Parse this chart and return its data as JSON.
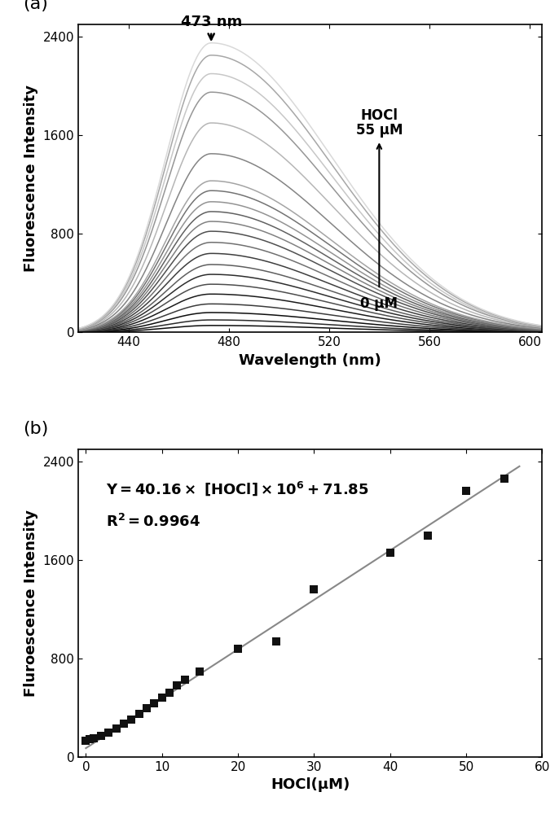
{
  "panel_a": {
    "xlabel": "Wavelength (nm)",
    "ylabel": "Fluorescence Intensity",
    "xlim": [
      420,
      605
    ],
    "ylim": [
      0,
      2500
    ],
    "xticks": [
      440,
      480,
      520,
      560,
      600
    ],
    "yticks": [
      0,
      800,
      1600,
      2400
    ],
    "peak_nm": 473,
    "annotation_peak": "473 nm",
    "annotation_hocl_top": "HOCl",
    "annotation_hocl_55": "55 μM",
    "annotation_hocl_0": "0 μM",
    "peak_intensities": [
      55,
      100,
      160,
      230,
      310,
      390,
      470,
      550,
      640,
      730,
      820,
      900,
      980,
      1060,
      1150,
      1230,
      1450,
      1700,
      1950,
      2100,
      2250,
      2350
    ],
    "gray_levels": [
      0.08,
      0.55,
      0.15,
      0.62,
      0.22,
      0.68,
      0.28,
      0.72,
      0.35,
      0.75,
      0.4,
      0.78,
      0.45,
      0.8,
      0.5,
      0.82,
      0.55,
      0.84,
      0.58,
      0.86,
      0.62,
      0.1
    ]
  },
  "panel_b": {
    "xlabel": "HOCl(μM)",
    "ylabel": "Fluroescence Intensity",
    "xlim": [
      -1,
      60
    ],
    "ylim": [
      0,
      2500
    ],
    "xticks": [
      0,
      10,
      20,
      30,
      40,
      50,
      60
    ],
    "yticks": [
      0,
      800,
      1600,
      2400
    ],
    "equation_line1": "Y= 40.16× [HOCl]×10",
    "equation_sup": "6",
    "equation_line1_end": " + 71.85",
    "r_squared": "R²= 0.9964",
    "scatter_x": [
      0,
      0.5,
      1,
      2,
      3,
      4,
      5,
      6,
      7,
      8,
      9,
      10,
      11,
      12,
      13,
      15,
      20,
      25,
      30,
      40,
      45,
      50,
      55
    ],
    "scatter_y": [
      130,
      145,
      155,
      175,
      200,
      230,
      270,
      305,
      350,
      395,
      435,
      480,
      525,
      580,
      630,
      695,
      880,
      940,
      1360,
      1660,
      1800,
      2160,
      2260
    ],
    "slope": 40.16,
    "intercept": 71.85,
    "line_color": "#888888",
    "scatter_color": "#111111"
  },
  "label_fontsize": 13,
  "tick_fontsize": 11,
  "panel_label_fontsize": 16,
  "background_color": "#ffffff"
}
